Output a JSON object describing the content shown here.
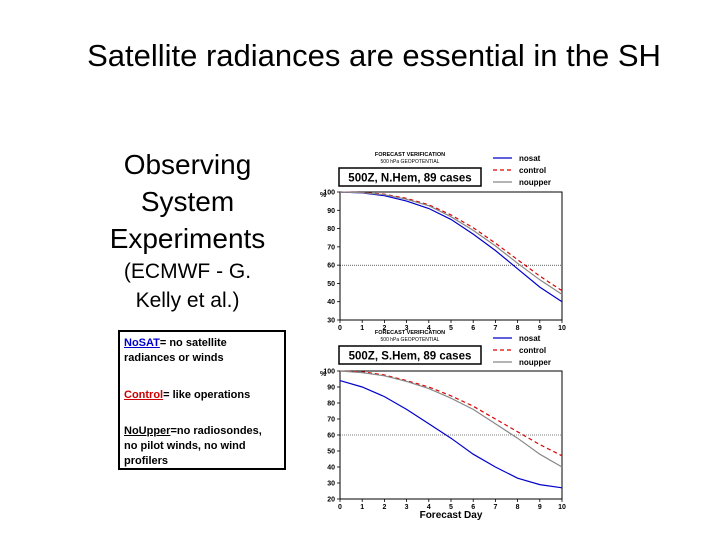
{
  "slide": {
    "title": "Satellite radiances are essential in the SH",
    "heading_lines": [
      "Observing",
      "System",
      "Experiments"
    ],
    "sub_lines": [
      "(ECMWF - G.",
      "Kelly et al.)"
    ]
  },
  "legend_box": {
    "nosat_term": "NoSAT",
    "nosat_desc_1": "= no satellite",
    "nosat_desc_2": "radiances or winds",
    "control_term": "Control",
    "control_desc": "= like operations",
    "noupper_term": "NoUpper",
    "noupper_desc_1": "=no radiosondes,",
    "noupper_desc_2": "no pilot winds, no wind",
    "noupper_desc_3": "profilers",
    "colors": {
      "nosat": "#0000cc",
      "control": "#cc0000",
      "noupper": "#000000"
    }
  },
  "chart_data": [
    {
      "type": "line",
      "header_line1": "FORECAST VERIFICATION",
      "header_line2": "500 hPa GEOPOTENTIAL",
      "title": "500Z, N.Hem, 89 cases",
      "ylabel": "%",
      "xlabel": "",
      "x": [
        0,
        1,
        2,
        3,
        4,
        5,
        6,
        7,
        8,
        9,
        10
      ],
      "xticks": [
        "0",
        "1",
        "2",
        "3",
        "4",
        "5",
        "6",
        "7",
        "8",
        "9",
        "10"
      ],
      "yticks": [
        "30",
        "40",
        "50",
        "60",
        "70",
        "80",
        "90",
        "100"
      ],
      "ylim": [
        30,
        100
      ],
      "xlim": [
        0,
        10
      ],
      "reference_line": 60,
      "series": [
        {
          "name": "nosat",
          "color": "#0000cc",
          "dash": "",
          "values": [
            100,
            99.5,
            98,
            95,
            91,
            85,
            77,
            68,
            58,
            48,
            40
          ]
        },
        {
          "name": "control",
          "color": "#dd0000",
          "dash": "4,3",
          "values": [
            100,
            99.7,
            98.8,
            96.5,
            93,
            87.5,
            80.5,
            72,
            63,
            54,
            46
          ]
        },
        {
          "name": "noupper",
          "color": "#888888",
          "dash": "",
          "values": [
            100,
            99.6,
            98.5,
            96,
            92.5,
            86.5,
            79,
            70.5,
            61,
            52,
            44
          ]
        }
      ]
    },
    {
      "type": "line",
      "header_line1": "FORECAST VERIFICATION",
      "header_line2": "500 hPa GEOPOTENTIAL",
      "title": "500Z, S.Hem, 89 cases",
      "ylabel": "%",
      "xlabel": "Forecast Day",
      "x": [
        0,
        1,
        2,
        3,
        4,
        5,
        6,
        7,
        8,
        9,
        10
      ],
      "xticks": [
        "0",
        "1",
        "2",
        "3",
        "4",
        "5",
        "6",
        "7",
        "8",
        "9",
        "10"
      ],
      "yticks": [
        "20",
        "30",
        "40",
        "50",
        "60",
        "70",
        "80",
        "90",
        "100"
      ],
      "ylim": [
        20,
        100
      ],
      "xlim": [
        0,
        10
      ],
      "reference_line": 60,
      "series": [
        {
          "name": "nosat",
          "color": "#0000cc",
          "dash": "",
          "values": [
            94,
            90,
            84,
            76,
            67,
            58,
            48,
            40,
            33,
            29,
            27
          ]
        },
        {
          "name": "control",
          "color": "#dd0000",
          "dash": "4,3",
          "values": [
            100,
            99.5,
            97.5,
            94,
            90,
            84.5,
            78,
            70,
            62,
            54,
            47
          ]
        },
        {
          "name": "noupper",
          "color": "#888888",
          "dash": "",
          "values": [
            100,
            99,
            97,
            93.5,
            89,
            83,
            76,
            67,
            58,
            48,
            40
          ]
        }
      ]
    }
  ]
}
